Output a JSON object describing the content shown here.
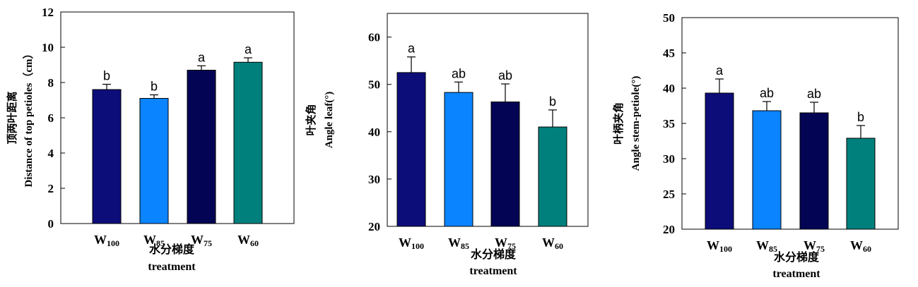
{
  "chart_data": [
    {
      "type": "bar",
      "ylabel_cn": "顶两叶距离",
      "ylabel": "Distance of top petioles（cm）",
      "xlabel_cn": "水分梯度",
      "xlabel": "treatment",
      "ylim": [
        0,
        12
      ],
      "yticks": [
        "0",
        "2",
        "4",
        "6",
        "8",
        "10",
        "12"
      ],
      "categories": [
        {
          "main": "W",
          "sub": "100"
        },
        {
          "main": "W",
          "sub": "85"
        },
        {
          "main": "W",
          "sub": "75"
        },
        {
          "main": "W",
          "sub": "60"
        }
      ],
      "values": [
        7.6,
        7.1,
        8.7,
        9.15
      ],
      "errors": [
        0.3,
        0.2,
        0.25,
        0.25
      ],
      "letters": [
        "b",
        "b",
        "a",
        "a"
      ],
      "colors": [
        "#0d0d7a",
        "#0a84ff",
        "#040455",
        "#00807c"
      ]
    },
    {
      "type": "bar",
      "ylabel_cn": "叶夹角",
      "ylabel": "Angle leaf(°)",
      "xlabel_cn": "水分梯度",
      "xlabel": "treatment",
      "ylim": [
        20,
        65
      ],
      "yticks": [
        "20",
        "30",
        "40",
        "50",
        "60"
      ],
      "categories": [
        {
          "main": "W",
          "sub": "100"
        },
        {
          "main": "W",
          "sub": "85"
        },
        {
          "main": "W",
          "sub": "75"
        },
        {
          "main": "W",
          "sub": "60"
        }
      ],
      "values": [
        52.5,
        48.3,
        46.3,
        41
      ],
      "errors": [
        3.3,
        2.2,
        3.8,
        3.6
      ],
      "letters": [
        "a",
        "ab",
        "ab",
        "b"
      ],
      "colors": [
        "#0d0d7a",
        "#0a84ff",
        "#040455",
        "#00807c"
      ]
    },
    {
      "type": "bar",
      "ylabel_cn": "叶柄夹角",
      "ylabel": "Angle stem-petiole(°)",
      "xlabel_cn": "水分梯度",
      "xlabel": "treatment",
      "ylim": [
        20,
        50
      ],
      "yticks": [
        "20",
        "25",
        "30",
        "35",
        "40",
        "45",
        "50"
      ],
      "categories": [
        {
          "main": "W",
          "sub": "100"
        },
        {
          "main": "W",
          "sub": "85"
        },
        {
          "main": "W",
          "sub": "75"
        },
        {
          "main": "W",
          "sub": "60"
        }
      ],
      "values": [
        39.3,
        36.8,
        36.5,
        32.9
      ],
      "errors": [
        2.0,
        1.3,
        1.5,
        1.8
      ],
      "letters": [
        "a",
        "ab",
        "ab",
        "b"
      ],
      "colors": [
        "#0d0d7a",
        "#0a84ff",
        "#040455",
        "#00807c"
      ]
    }
  ]
}
